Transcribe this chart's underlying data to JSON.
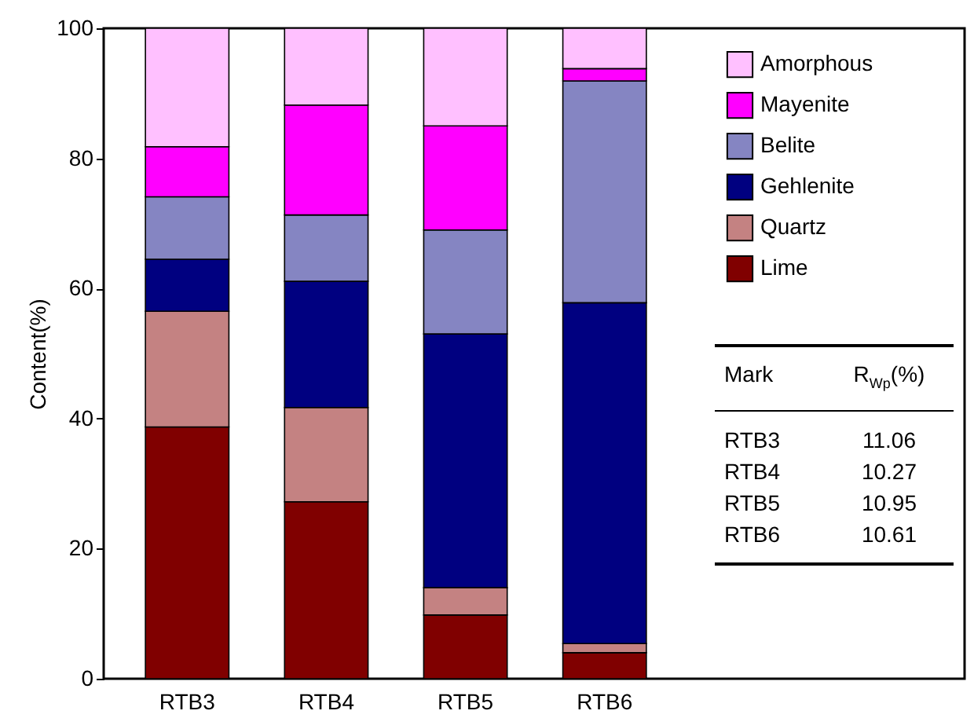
{
  "chart_data": {
    "type": "bar",
    "stacked": true,
    "ylabel": "Content(%)",
    "categories": [
      "RTB3",
      "RTB4",
      "RTB5",
      "RTB6"
    ],
    "series": [
      {
        "name": "Lime",
        "color": "#800000",
        "values": [
          38.7,
          27.2,
          9.8,
          4.0
        ]
      },
      {
        "name": "Quartz",
        "color": "#c48282",
        "values": [
          17.8,
          14.5,
          4.2,
          1.4
        ]
      },
      {
        "name": "Gehlenite",
        "color": "#000080",
        "values": [
          8.0,
          19.4,
          39.0,
          52.4
        ]
      },
      {
        "name": "Belite",
        "color": "#8585c2",
        "values": [
          9.6,
          10.2,
          16.0,
          34.1
        ]
      },
      {
        "name": "Mayenite",
        "color": "#ff00ff",
        "values": [
          7.7,
          16.9,
          16.0,
          1.9
        ]
      },
      {
        "name": "Amorphous",
        "color": "#ffc0ff",
        "values": [
          18.2,
          11.8,
          15.0,
          6.2
        ]
      }
    ],
    "ylim": [
      0,
      100
    ],
    "yticks": [
      0,
      20,
      40,
      60,
      80,
      100
    ],
    "grid": false,
    "legend": "top right",
    "annotations": [
      "Mark",
      "R$_{Wp}$(%)",
      "RTB3",
      "11.06",
      "RTB4",
      "10.27",
      "RTB5",
      "10.95",
      "RTB6",
      "10.61"
    ]
  }
}
